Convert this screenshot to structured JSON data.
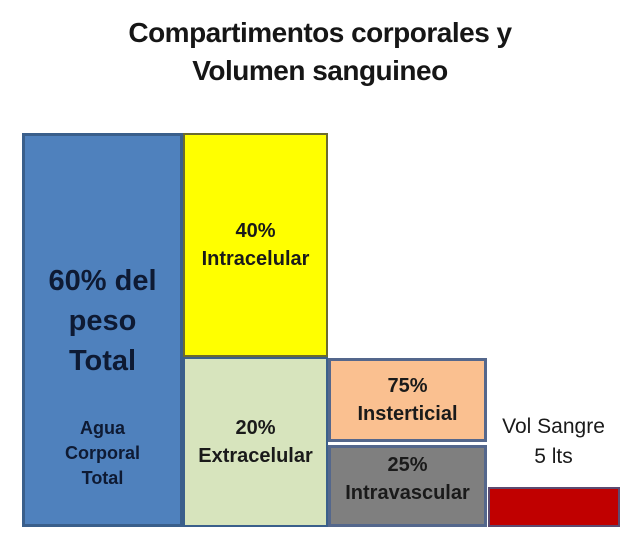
{
  "title": {
    "line1": "Compartimentos corporales y",
    "line2": "Volumen sanguineo"
  },
  "compartments": {
    "total_water": {
      "headline": [
        "60% del",
        "peso",
        "Total"
      ],
      "sublabel": [
        "Agua",
        "Corporal",
        "Total"
      ],
      "percent": "60%"
    },
    "intracellular": {
      "lines": [
        "40%",
        "Intracelular"
      ],
      "percent": "40%"
    },
    "extracellular": {
      "lines": [
        "20%",
        "Extracelular"
      ],
      "percent": "20%"
    },
    "interstitial": {
      "lines": [
        "75%",
        "Insterticial"
      ],
      "percent": "75%"
    },
    "intravascular": {
      "lines": [
        "25%",
        "Intravascular"
      ],
      "percent": "25%"
    },
    "blood_volume": {
      "lines": [
        "Vol Sangre",
        "5 lts"
      ],
      "value": "5 lts"
    }
  },
  "colors": {
    "total_water_fill": "#4F81BD",
    "intracellular_fill": "#FFFF00",
    "extracellular_fill": "#D7E4BD",
    "interstitial_fill": "#FAC090",
    "intravascular_fill": "#7F7F7F",
    "blood_volume_fill": "#C00000",
    "blue_border": "#3A5F8B",
    "yellow_border": "#6B6B2F",
    "slate_border": "#54678C",
    "red_border": "#5C4A70"
  }
}
